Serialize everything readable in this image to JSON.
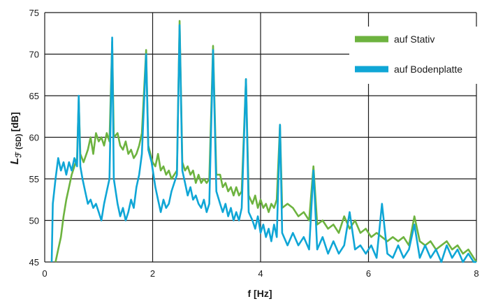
{
  "chart_data": {
    "type": "line",
    "xlabel": "f [Hz]",
    "ylabel": "Lℱ (SD) [dB]",
    "ylabel_parts": {
      "symbol": "L",
      "sub": "ℱ (SD)",
      "unit": "[dB]"
    },
    "xlim": [
      0,
      8
    ],
    "ylim": [
      45,
      75
    ],
    "x_ticks": [
      0,
      2,
      4,
      6,
      8
    ],
    "y_ticks": [
      45,
      50,
      55,
      60,
      65,
      70,
      75
    ],
    "grid": true,
    "legend_position": "top-right",
    "series": [
      {
        "name": "auf Stativ",
        "color": "#6db33f",
        "points": [
          [
            0.2,
            45.0
          ],
          [
            0.25,
            46.5
          ],
          [
            0.3,
            48.0
          ],
          [
            0.35,
            50.5
          ],
          [
            0.4,
            52.5
          ],
          [
            0.45,
            54.0
          ],
          [
            0.5,
            55.5
          ],
          [
            0.55,
            56.5
          ],
          [
            0.6,
            57.5
          ],
          [
            0.63,
            64.5
          ],
          [
            0.66,
            58.0
          ],
          [
            0.72,
            57.0
          ],
          [
            0.8,
            58.5
          ],
          [
            0.85,
            60.0
          ],
          [
            0.9,
            58.0
          ],
          [
            0.95,
            60.5
          ],
          [
            1.0,
            59.5
          ],
          [
            1.05,
            60.0
          ],
          [
            1.1,
            59.0
          ],
          [
            1.15,
            60.5
          ],
          [
            1.2,
            59.5
          ],
          [
            1.25,
            71.5
          ],
          [
            1.28,
            60.0
          ],
          [
            1.35,
            60.5
          ],
          [
            1.4,
            59.0
          ],
          [
            1.45,
            58.5
          ],
          [
            1.5,
            59.5
          ],
          [
            1.55,
            58.0
          ],
          [
            1.6,
            58.5
          ],
          [
            1.65,
            57.5
          ],
          [
            1.7,
            58.0
          ],
          [
            1.75,
            59.0
          ],
          [
            1.8,
            60.5
          ],
          [
            1.88,
            70.5
          ],
          [
            1.92,
            59.0
          ],
          [
            2.0,
            57.0
          ],
          [
            2.05,
            56.5
          ],
          [
            2.1,
            58.0
          ],
          [
            2.15,
            56.0
          ],
          [
            2.2,
            56.5
          ],
          [
            2.25,
            55.5
          ],
          [
            2.3,
            56.0
          ],
          [
            2.35,
            55.0
          ],
          [
            2.4,
            55.5
          ],
          [
            2.45,
            56.0
          ],
          [
            2.5,
            74.0
          ],
          [
            2.55,
            57.0
          ],
          [
            2.6,
            56.0
          ],
          [
            2.65,
            56.5
          ],
          [
            2.7,
            55.5
          ],
          [
            2.75,
            56.0
          ],
          [
            2.8,
            54.5
          ],
          [
            2.85,
            55.5
          ],
          [
            2.9,
            54.5
          ],
          [
            2.95,
            55.0
          ],
          [
            3.0,
            54.5
          ],
          [
            3.05,
            55.0
          ],
          [
            3.12,
            71.0
          ],
          [
            3.18,
            55.5
          ],
          [
            3.25,
            55.5
          ],
          [
            3.3,
            54.0
          ],
          [
            3.35,
            54.5
          ],
          [
            3.4,
            53.5
          ],
          [
            3.45,
            54.0
          ],
          [
            3.5,
            53.0
          ],
          [
            3.55,
            54.0
          ],
          [
            3.6,
            53.0
          ],
          [
            3.65,
            53.5
          ],
          [
            3.73,
            67.0
          ],
          [
            3.78,
            53.0
          ],
          [
            3.85,
            52.0
          ],
          [
            3.9,
            53.0
          ],
          [
            3.95,
            51.5
          ],
          [
            4.0,
            52.5
          ],
          [
            4.05,
            51.5
          ],
          [
            4.1,
            52.0
          ],
          [
            4.15,
            51.0
          ],
          [
            4.2,
            52.0
          ],
          [
            4.25,
            51.5
          ],
          [
            4.3,
            52.5
          ],
          [
            4.36,
            61.5
          ],
          [
            4.4,
            51.5
          ],
          [
            4.5,
            52.0
          ],
          [
            4.6,
            51.5
          ],
          [
            4.7,
            50.5
          ],
          [
            4.8,
            51.0
          ],
          [
            4.9,
            50.0
          ],
          [
            4.98,
            56.5
          ],
          [
            5.05,
            49.5
          ],
          [
            5.15,
            50.0
          ],
          [
            5.25,
            49.0
          ],
          [
            5.35,
            49.5
          ],
          [
            5.45,
            48.5
          ],
          [
            5.55,
            50.5
          ],
          [
            5.65,
            49.0
          ],
          [
            5.75,
            50.0
          ],
          [
            5.85,
            48.5
          ],
          [
            5.95,
            49.0
          ],
          [
            6.05,
            48.0
          ],
          [
            6.15,
            48.5
          ],
          [
            6.25,
            48.0
          ],
          [
            6.35,
            47.5
          ],
          [
            6.45,
            48.0
          ],
          [
            6.55,
            47.5
          ],
          [
            6.65,
            48.0
          ],
          [
            6.75,
            47.0
          ],
          [
            6.85,
            50.5
          ],
          [
            6.95,
            47.5
          ],
          [
            7.05,
            47.0
          ],
          [
            7.15,
            47.5
          ],
          [
            7.25,
            46.5
          ],
          [
            7.35,
            47.0
          ],
          [
            7.45,
            47.5
          ],
          [
            7.55,
            46.5
          ],
          [
            7.65,
            47.0
          ],
          [
            7.75,
            46.0
          ],
          [
            7.85,
            46.5
          ],
          [
            7.95,
            45.5
          ],
          [
            8.0,
            45.0
          ]
        ]
      },
      {
        "name": "auf Bodenplatte",
        "color": "#0fa6d6",
        "points": [
          [
            0.13,
            45.0
          ],
          [
            0.15,
            52.0
          ],
          [
            0.2,
            55.0
          ],
          [
            0.25,
            57.5
          ],
          [
            0.3,
            56.0
          ],
          [
            0.35,
            57.0
          ],
          [
            0.4,
            55.5
          ],
          [
            0.45,
            57.0
          ],
          [
            0.5,
            56.0
          ],
          [
            0.55,
            57.5
          ],
          [
            0.6,
            56.5
          ],
          [
            0.63,
            65.0
          ],
          [
            0.66,
            56.5
          ],
          [
            0.7,
            55.0
          ],
          [
            0.75,
            53.5
          ],
          [
            0.8,
            52.0
          ],
          [
            0.85,
            52.5
          ],
          [
            0.9,
            51.5
          ],
          [
            0.95,
            52.0
          ],
          [
            1.0,
            51.0
          ],
          [
            1.05,
            50.0
          ],
          [
            1.1,
            52.0
          ],
          [
            1.15,
            53.5
          ],
          [
            1.2,
            55.0
          ],
          [
            1.25,
            72.0
          ],
          [
            1.28,
            55.0
          ],
          [
            1.35,
            52.0
          ],
          [
            1.4,
            50.5
          ],
          [
            1.45,
            51.5
          ],
          [
            1.5,
            50.0
          ],
          [
            1.55,
            51.0
          ],
          [
            1.6,
            52.5
          ],
          [
            1.65,
            51.5
          ],
          [
            1.7,
            54.0
          ],
          [
            1.75,
            55.5
          ],
          [
            1.8,
            58.0
          ],
          [
            1.88,
            70.0
          ],
          [
            1.92,
            58.5
          ],
          [
            1.98,
            57.0
          ],
          [
            2.05,
            54.0
          ],
          [
            2.1,
            52.5
          ],
          [
            2.15,
            51.0
          ],
          [
            2.2,
            52.5
          ],
          [
            2.25,
            51.5
          ],
          [
            2.3,
            52.0
          ],
          [
            2.35,
            53.5
          ],
          [
            2.4,
            54.5
          ],
          [
            2.45,
            55.5
          ],
          [
            2.5,
            73.5
          ],
          [
            2.55,
            56.0
          ],
          [
            2.6,
            54.5
          ],
          [
            2.65,
            53.0
          ],
          [
            2.7,
            54.0
          ],
          [
            2.75,
            52.5
          ],
          [
            2.8,
            53.0
          ],
          [
            2.85,
            52.0
          ],
          [
            2.9,
            51.5
          ],
          [
            2.95,
            52.5
          ],
          [
            3.0,
            51.0
          ],
          [
            3.05,
            52.0
          ],
          [
            3.12,
            70.5
          ],
          [
            3.18,
            53.5
          ],
          [
            3.25,
            52.0
          ],
          [
            3.3,
            51.0
          ],
          [
            3.35,
            52.0
          ],
          [
            3.4,
            50.5
          ],
          [
            3.45,
            51.5
          ],
          [
            3.5,
            50.0
          ],
          [
            3.55,
            51.0
          ],
          [
            3.6,
            50.0
          ],
          [
            3.65,
            51.5
          ],
          [
            3.73,
            67.0
          ],
          [
            3.78,
            51.0
          ],
          [
            3.85,
            50.0
          ],
          [
            3.9,
            49.0
          ],
          [
            3.95,
            50.5
          ],
          [
            4.0,
            48.5
          ],
          [
            4.05,
            49.5
          ],
          [
            4.1,
            48.0
          ],
          [
            4.15,
            49.0
          ],
          [
            4.2,
            47.5
          ],
          [
            4.25,
            49.5
          ],
          [
            4.3,
            48.0
          ],
          [
            4.36,
            61.5
          ],
          [
            4.4,
            48.5
          ],
          [
            4.5,
            47.0
          ],
          [
            4.6,
            48.5
          ],
          [
            4.7,
            47.0
          ],
          [
            4.8,
            48.0
          ],
          [
            4.9,
            46.5
          ],
          [
            4.98,
            56.0
          ],
          [
            5.05,
            46.5
          ],
          [
            5.15,
            48.0
          ],
          [
            5.25,
            46.0
          ],
          [
            5.35,
            47.5
          ],
          [
            5.45,
            46.0
          ],
          [
            5.55,
            47.0
          ],
          [
            5.65,
            51.0
          ],
          [
            5.75,
            46.5
          ],
          [
            5.85,
            47.0
          ],
          [
            5.95,
            46.0
          ],
          [
            6.05,
            47.0
          ],
          [
            6.15,
            45.5
          ],
          [
            6.25,
            52.0
          ],
          [
            6.35,
            46.0
          ],
          [
            6.45,
            45.5
          ],
          [
            6.55,
            47.0
          ],
          [
            6.65,
            45.5
          ],
          [
            6.75,
            46.5
          ],
          [
            6.85,
            49.5
          ],
          [
            6.95,
            45.5
          ],
          [
            7.05,
            47.0
          ],
          [
            7.15,
            45.5
          ],
          [
            7.25,
            46.5
          ],
          [
            7.35,
            45.0
          ],
          [
            7.45,
            47.0
          ],
          [
            7.55,
            45.5
          ],
          [
            7.65,
            46.5
          ],
          [
            7.75,
            45.0
          ],
          [
            7.85,
            46.0
          ],
          [
            7.95,
            45.0
          ],
          [
            8.0,
            45.0
          ]
        ]
      }
    ]
  }
}
